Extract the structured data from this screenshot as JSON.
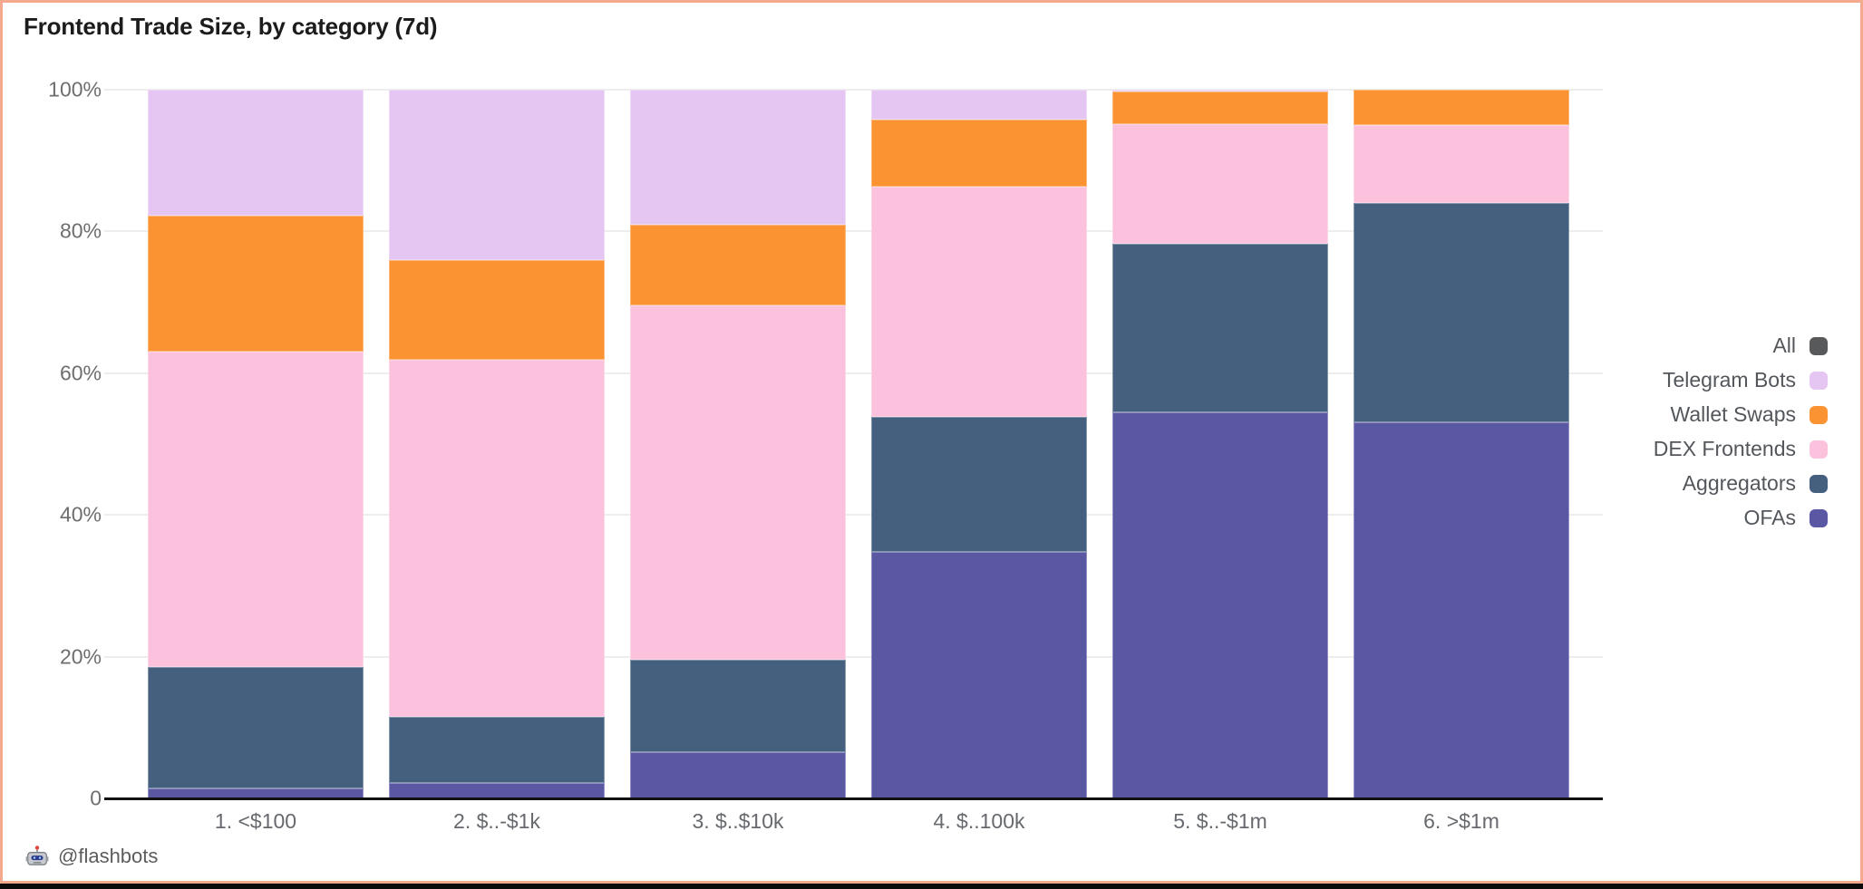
{
  "page": {
    "title": "Frontend Trade Size, by category (7d)",
    "attribution": "@flashbots",
    "border_color": "#f5aa90",
    "background_color": "#ffffff"
  },
  "chart_data": {
    "type": "bar",
    "stacked": true,
    "orientation": "vertical",
    "title": "Frontend Trade Size, by category (7d)",
    "xlabel": "",
    "ylabel": "",
    "ylim": [
      0,
      100
    ],
    "unit": "%",
    "grid": true,
    "categories": [
      "1. <$100",
      "2. $..-$1k",
      "3. $..$10k",
      "4. $..100k",
      "5. $..-$1m",
      "6. >$1m"
    ],
    "series": [
      {
        "name": "OFAs",
        "color": "#5a57a3",
        "values": [
          1.4,
          2.2,
          6.5,
          34.8,
          54.5,
          53.1
        ]
      },
      {
        "name": "Aggregators",
        "color": "#44607e",
        "values": [
          17.1,
          9.3,
          13.1,
          19.0,
          23.8,
          30.9
        ]
      },
      {
        "name": "DEX Frontends",
        "color": "#fcc2dd",
        "values": [
          44.5,
          50.4,
          50.0,
          32.5,
          16.8,
          11.0
        ]
      },
      {
        "name": "Wallet Swaps",
        "color": "#fb9332",
        "values": [
          19.2,
          14.1,
          11.4,
          9.5,
          4.7,
          5.0
        ]
      },
      {
        "name": "Telegram Bots",
        "color": "#e5c5f2",
        "values": [
          17.8,
          24.0,
          19.0,
          4.2,
          0.2,
          0.0
        ]
      }
    ],
    "y_axis": {
      "ticks": [
        {
          "value": 0,
          "label": "0"
        },
        {
          "value": 20,
          "label": "20%"
        },
        {
          "value": 40,
          "label": "40%"
        },
        {
          "value": 60,
          "label": "60%"
        },
        {
          "value": 80,
          "label": "80%"
        },
        {
          "value": 100,
          "label": "100%"
        }
      ]
    },
    "legend": {
      "position": "right",
      "entries": [
        {
          "label": "All",
          "color": "#58595b"
        },
        {
          "label": "Telegram Bots",
          "color": "#e5c5f2"
        },
        {
          "label": "Wallet Swaps",
          "color": "#fb9332"
        },
        {
          "label": "DEX Frontends",
          "color": "#fcc2dd"
        },
        {
          "label": "Aggregators",
          "color": "#44607e"
        },
        {
          "label": "OFAs",
          "color": "#5a57a3"
        }
      ]
    }
  }
}
